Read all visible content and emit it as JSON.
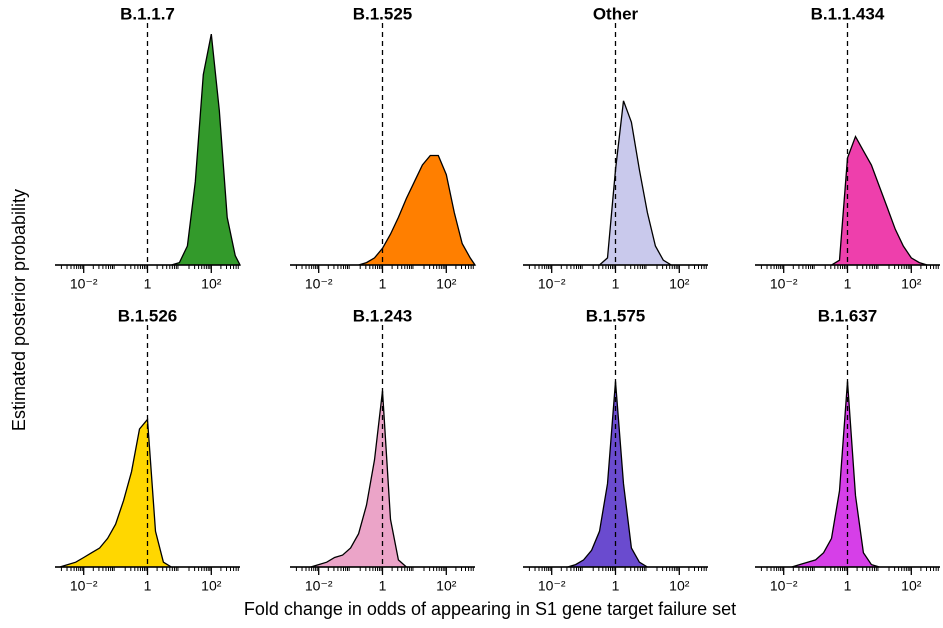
{
  "chart_data": {
    "type": "area",
    "x_label": "Fold change in odds of appearing in S1 gene target failure set",
    "y_label": "Estimated posterior probability",
    "xscale": "log",
    "xlim": [
      0.00126,
      794
    ],
    "xticks": [
      {
        "value": 0.01,
        "label": "10⁻²"
      },
      1,
      {
        "value": 100,
        "label": "10²"
      }
    ],
    "reference_line": 1,
    "ylim": [
      0,
      1
    ],
    "x": [
      0.00178,
      0.00316,
      0.00562,
      0.01,
      0.0178,
      0.0316,
      0.0562,
      0.1,
      0.178,
      0.316,
      0.562,
      1,
      1.78,
      3.16,
      5.62,
      10,
      17.8,
      31.6,
      56.2,
      100,
      178,
      316,
      562
    ],
    "series": [
      {
        "name": "B.1.1.7",
        "color": "#339a2b",
        "values": [
          0,
          0,
          0,
          0,
          0,
          0,
          0,
          0,
          0,
          0,
          0,
          0,
          0,
          0,
          0,
          0.01,
          0.08,
          0.35,
          0.8,
          0.97,
          0.65,
          0.2,
          0.04
        ]
      },
      {
        "name": "B.1.525",
        "color": "#ff7f00",
        "values": [
          0,
          0,
          0,
          0,
          0,
          0,
          0,
          0,
          0,
          0.01,
          0.03,
          0.07,
          0.13,
          0.2,
          0.28,
          0.35,
          0.42,
          0.46,
          0.46,
          0.38,
          0.22,
          0.09,
          0.03
        ]
      },
      {
        "name": "Other",
        "color": "#c9c9ec",
        "values": [
          0,
          0,
          0,
          0,
          0,
          0,
          0,
          0,
          0,
          0,
          0.03,
          0.4,
          0.69,
          0.6,
          0.4,
          0.22,
          0.08,
          0.02,
          0,
          0,
          0,
          0,
          0
        ]
      },
      {
        "name": "B.1.1.434",
        "color": "#ee3fac",
        "values": [
          0,
          0,
          0,
          0,
          0,
          0,
          0,
          0,
          0,
          0,
          0.02,
          0.45,
          0.54,
          0.48,
          0.42,
          0.33,
          0.24,
          0.15,
          0.08,
          0.03,
          0.01,
          0,
          0
        ]
      },
      {
        "name": "B.1.526",
        "color": "#ffd700",
        "values": [
          0,
          0.01,
          0.02,
          0.04,
          0.06,
          0.08,
          0.12,
          0.18,
          0.28,
          0.4,
          0.58,
          0.62,
          0.15,
          0.02,
          0,
          0,
          0,
          0,
          0,
          0,
          0,
          0,
          0
        ]
      },
      {
        "name": "B.1.243",
        "color": "#eba4c8",
        "values": [
          0,
          0,
          0,
          0.01,
          0.02,
          0.04,
          0.05,
          0.08,
          0.14,
          0.26,
          0.45,
          0.74,
          0.2,
          0.03,
          0,
          0,
          0,
          0,
          0,
          0,
          0,
          0,
          0
        ]
      },
      {
        "name": "B.1.575",
        "color": "#6a4bcf",
        "values": [
          0,
          0,
          0,
          0,
          0,
          0,
          0.01,
          0.03,
          0.07,
          0.15,
          0.35,
          0.78,
          0.35,
          0.08,
          0.02,
          0,
          0,
          0,
          0,
          0,
          0,
          0,
          0
        ]
      },
      {
        "name": "B.1.637",
        "color": "#d63fe8",
        "values": [
          0,
          0,
          0,
          0,
          0,
          0.01,
          0.02,
          0.03,
          0.06,
          0.12,
          0.32,
          0.78,
          0.3,
          0.06,
          0.01,
          0,
          0,
          0,
          0,
          0,
          0,
          0,
          0
        ]
      }
    ]
  }
}
